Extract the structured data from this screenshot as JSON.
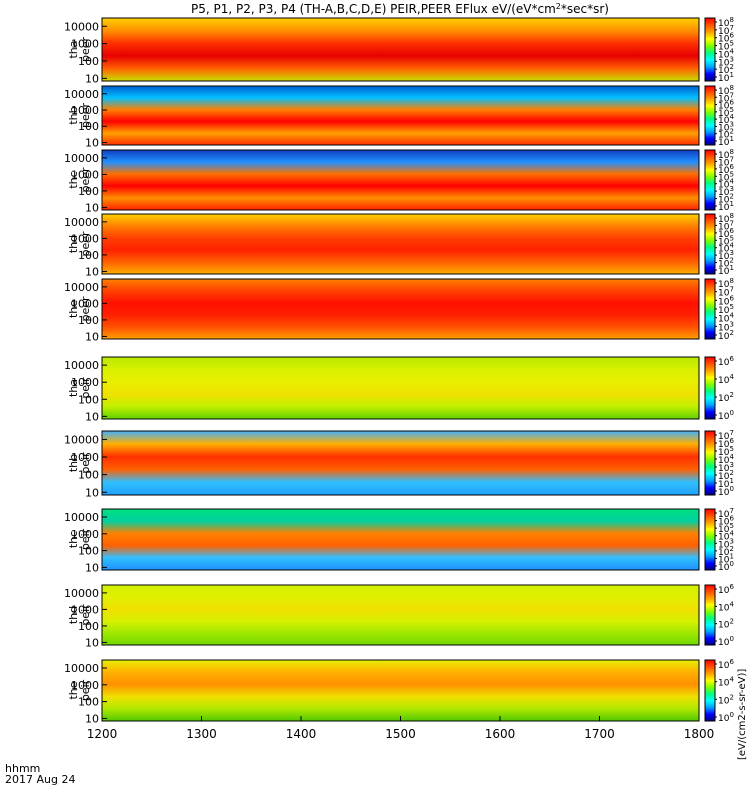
{
  "chart_data": {
    "type": "heatmap",
    "title": "P5, P1, P2, P3, P4 (TH-A,B,C,D,E) PEIR,PEER EFlux eV/(eV*cm",
    "title_sup": "2",
    "title_tail": "*sec*sr)",
    "x_axis": {
      "range": [
        1200,
        1800
      ],
      "ticks": [
        1200,
        1300,
        1400,
        1500,
        1600,
        1700,
        1800
      ],
      "label": "hhmm",
      "date_label": "2017 Aug 24"
    },
    "y_axis": {
      "scale": "log",
      "range": [
        7,
        30000
      ],
      "ticks": [
        10,
        100,
        1000,
        10000
      ]
    },
    "colorbar_label": "[eV/(cm2-s-sr-eV)]",
    "panels": [
      {
        "probe": "tha",
        "species": "peer",
        "label_line1": "tha",
        "label_line2": "peer",
        "colorbar_ticks": [
          "10^8",
          "10^7",
          "10^6",
          "10^5",
          "10^4",
          "10^3",
          "10^2",
          "10^1"
        ]
      },
      {
        "probe": "thb",
        "species": "peer",
        "label_line1": "thb",
        "label_line2": "peer",
        "colorbar_ticks": [
          "10^8",
          "10^7",
          "10^6",
          "10^5",
          "10^4",
          "10^3",
          "10^2",
          "10^1"
        ]
      },
      {
        "probe": "thc",
        "species": "peer",
        "label_line1": "thc",
        "label_line2": "peer",
        "colorbar_ticks": [
          "10^8",
          "10^7",
          "10^6",
          "10^5",
          "10^4",
          "10^3",
          "10^2",
          "10^1"
        ]
      },
      {
        "probe": "thd",
        "species": "peer",
        "label_line1": "thd",
        "label_line2": "peer",
        "colorbar_ticks": [
          "10^8",
          "10^7",
          "10^6",
          "10^5",
          "10^4",
          "10^3",
          "10^2",
          "10^1"
        ]
      },
      {
        "probe": "the",
        "species": "peer",
        "label_line1": "the",
        "label_line2": "peer",
        "colorbar_ticks": [
          "10^8",
          "10^7",
          "10^6",
          "10^5",
          "10^4",
          "10^3",
          "10^2"
        ]
      },
      {
        "probe": "tha",
        "species": "peir",
        "label_line1": "tha",
        "label_line2": "peir",
        "colorbar_ticks": [
          "10^6",
          "10^4",
          "10^2",
          "10^0"
        ]
      },
      {
        "probe": "thb",
        "species": "peir",
        "label_line1": "thb",
        "label_line2": "peir",
        "colorbar_ticks": [
          "10^7",
          "10^6",
          "10^5",
          "10^4",
          "10^3",
          "10^2",
          "10^1",
          "10^0"
        ]
      },
      {
        "probe": "thc",
        "species": "peir",
        "label_line1": "thc",
        "label_line2": "peir",
        "colorbar_ticks": [
          "10^7",
          "10^6",
          "10^5",
          "10^4",
          "10^3",
          "10^2",
          "10^1",
          "10^0"
        ]
      },
      {
        "probe": "thd",
        "species": "peir",
        "label_line1": "thd",
        "label_line2": "peir",
        "colorbar_ticks": [
          "10^6",
          "10^4",
          "10^2",
          "10^0"
        ]
      },
      {
        "probe": "the",
        "species": "peir",
        "label_line1": "the",
        "label_line2": "peir",
        "colorbar_ticks": [
          "10^6",
          "10^4",
          "10^2",
          "10^0"
        ]
      }
    ],
    "colormap": [
      "#000080",
      "#0000ff",
      "#00a0ff",
      "#00ffff",
      "#00ff80",
      "#80ff00",
      "#ffff00",
      "#ffa000",
      "#ff5000",
      "#ff0000"
    ]
  }
}
